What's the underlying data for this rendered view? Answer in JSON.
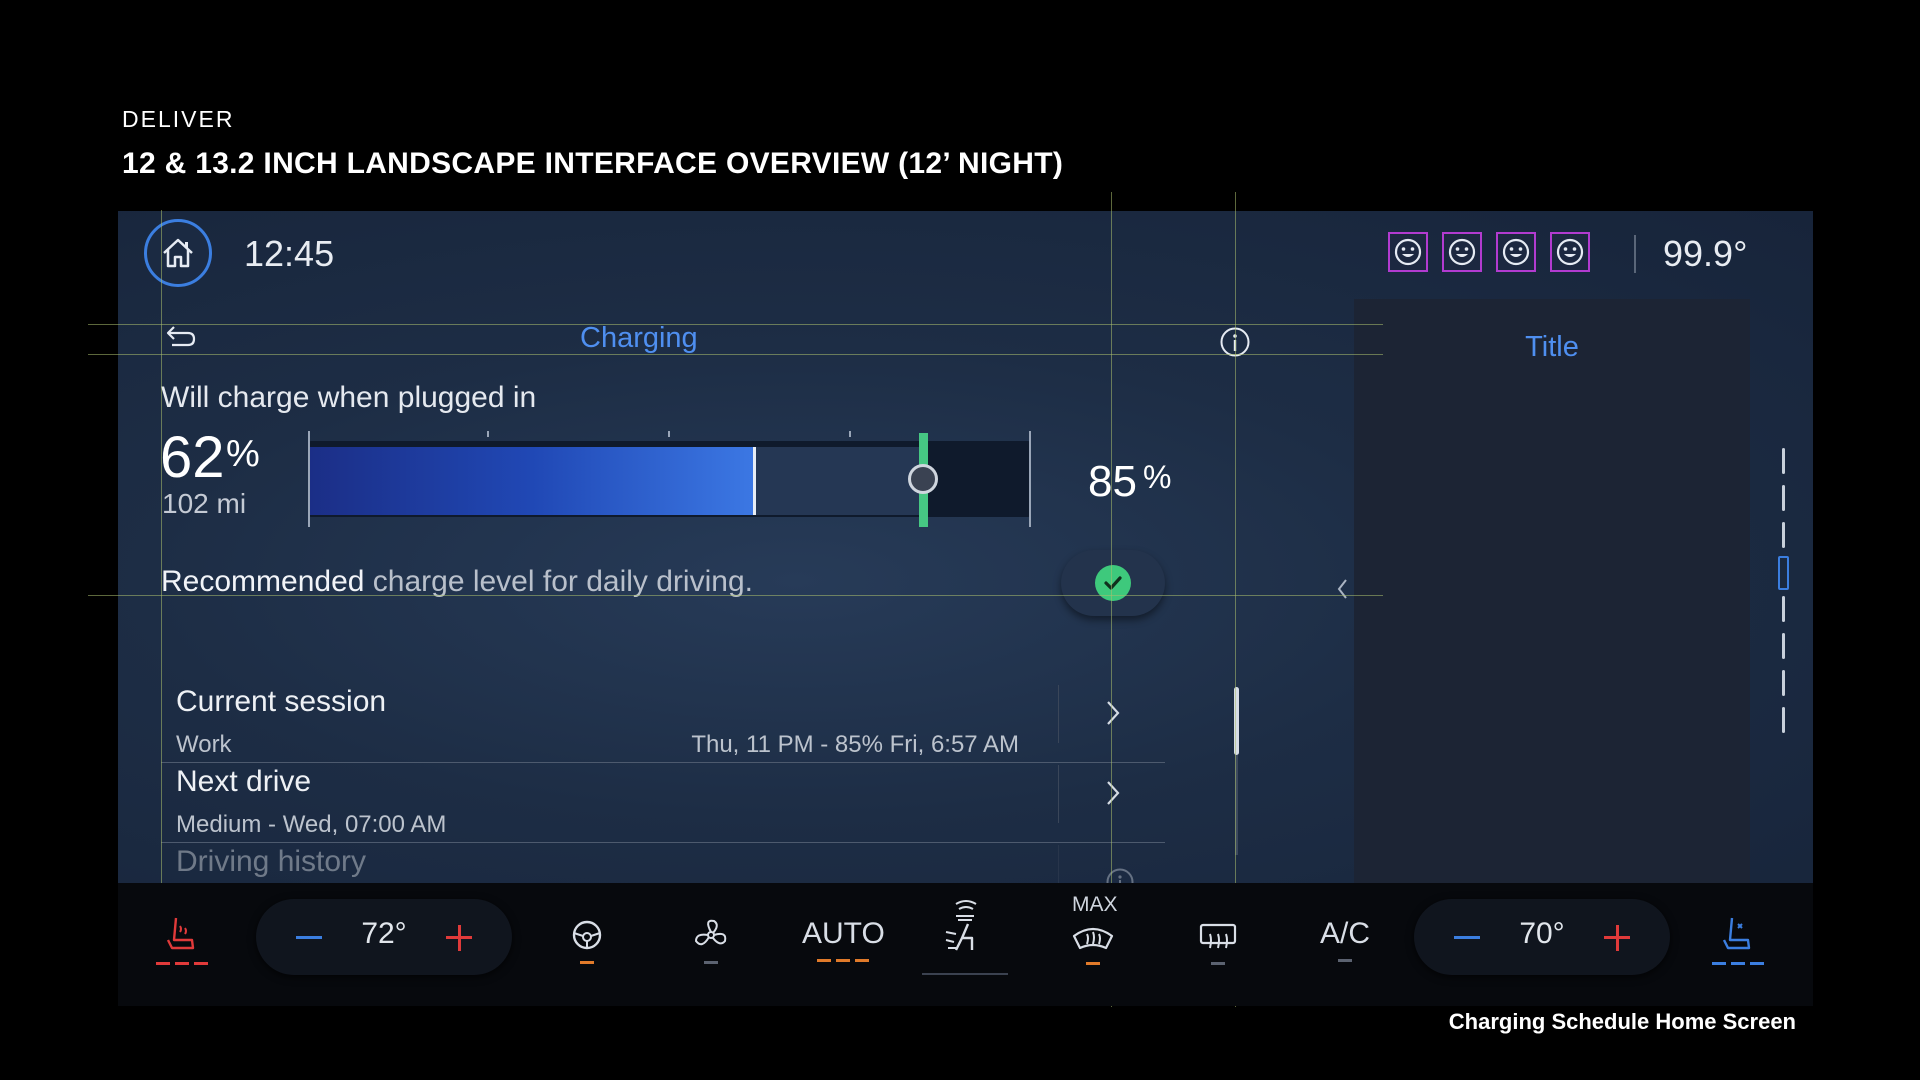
{
  "slide": {
    "eyebrow": "DELIVER",
    "title": "12 & 13.2 INCH LANDSCAPE INTERFACE OVERVIEW (12’ NIGHT)",
    "caption": "Charging Schedule Home Screen"
  },
  "status_bar": {
    "home_icon": "home-icon",
    "time": "12:45",
    "profiles": [
      "smiley-profile-icon",
      "smiley-profile-icon",
      "smiley-profile-icon",
      "smiley-profile-icon"
    ],
    "outside_temp": "99.9°"
  },
  "header": {
    "title": "Charging",
    "back_icon": "back-arrow-icon",
    "info_icon": "info-icon"
  },
  "charge": {
    "status": "Will charge when plugged in",
    "current_value": "62",
    "current_unit": "%",
    "current_fraction": 0.62,
    "range": "102 mi",
    "target_value": "85",
    "target_unit": "%",
    "target_fraction": 0.85,
    "recommend_bold": "Recommended",
    "recommend_rest": " charge level for daily driving.",
    "check_icon": "check-icon"
  },
  "list": [
    {
      "title": "Current session",
      "subtitle": "Work",
      "meta": "Thu, 11 PM - 85% Fri, 6:57 AM"
    },
    {
      "title": "Next drive",
      "subtitle": "Medium - Wed, 07:00 AM",
      "meta": ""
    },
    {
      "title": "Driving history",
      "subtitle": "",
      "meta": ""
    }
  ],
  "side_panel": {
    "title": "Title"
  },
  "climate": {
    "driver_temp": "72°",
    "passenger_temp": "70°",
    "auto_label": "AUTO",
    "max_label": "MAX",
    "ac_label": "A/C",
    "colors": {
      "heat": "#e03a3a",
      "active": "#e07a2a",
      "cool": "#3b7ee0",
      "off": "#5b6270"
    }
  }
}
